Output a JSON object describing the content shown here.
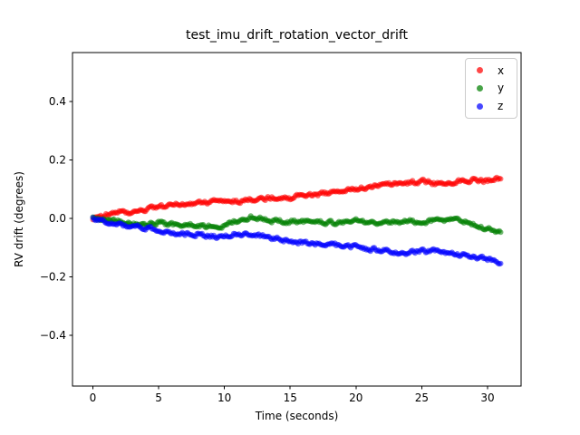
{
  "title": "test_imu_drift_rotation_vector_drift",
  "axes": {
    "xlabel": "Time (seconds)",
    "ylabel": "RV drift (degrees)",
    "xlim": [
      -1.55,
      32.55
    ],
    "ylim": [
      -0.574,
      0.567
    ],
    "xticks": [
      0,
      5,
      10,
      15,
      20,
      25,
      30
    ],
    "xtick_labels": [
      "0",
      "5",
      "10",
      "15",
      "20",
      "25",
      "30"
    ],
    "yticks": [
      -0.4,
      -0.2,
      0.0,
      0.2,
      0.4
    ],
    "ytick_labels": [
      "−0.4",
      "−0.2",
      "0.0",
      "0.2",
      "0.4"
    ],
    "grid": false,
    "background": "#ffffff",
    "spine_color": "#000000"
  },
  "legend": {
    "position": "upper right",
    "entries": [
      {
        "label": "x",
        "color": "#ff0000"
      },
      {
        "label": "y",
        "color": "#008000"
      },
      {
        "label": "z",
        "color": "#0000ff"
      }
    ]
  },
  "chart_data": {
    "type": "scatter",
    "title": "test_imu_drift_rotation_vector_drift",
    "xlabel": "Time (seconds)",
    "ylabel": "RV drift (degrees)",
    "xlim": [
      -1.55,
      32.55
    ],
    "ylim": [
      -0.574,
      0.567
    ],
    "x_seconds": [
      0,
      1,
      2,
      3,
      4,
      5,
      6,
      7,
      8,
      9,
      10,
      11,
      12,
      13,
      14,
      15,
      16,
      17,
      18,
      19,
      20,
      21,
      22,
      23,
      24,
      25,
      26,
      27,
      28,
      29,
      30,
      31
    ],
    "series": [
      {
        "name": "x",
        "color": "#ff0000",
        "values": [
          0.0,
          0.012,
          0.022,
          0.016,
          0.03,
          0.038,
          0.044,
          0.049,
          0.053,
          0.057,
          0.063,
          0.057,
          0.065,
          0.067,
          0.073,
          0.069,
          0.082,
          0.079,
          0.088,
          0.092,
          0.101,
          0.106,
          0.114,
          0.118,
          0.122,
          0.126,
          0.119,
          0.123,
          0.129,
          0.132,
          0.128,
          0.136
        ]
      },
      {
        "name": "y",
        "color": "#008000",
        "values": [
          0.0,
          -0.005,
          -0.01,
          -0.018,
          -0.021,
          -0.016,
          -0.022,
          -0.02,
          -0.025,
          -0.027,
          -0.023,
          -0.008,
          0.003,
          -0.004,
          -0.009,
          -0.012,
          -0.01,
          -0.013,
          -0.015,
          -0.017,
          -0.005,
          -0.02,
          -0.015,
          -0.012,
          -0.01,
          -0.015,
          -0.007,
          -0.004,
          -0.006,
          -0.02,
          -0.036,
          -0.05
        ]
      },
      {
        "name": "z",
        "color": "#0000ff",
        "values": [
          0.0,
          -0.013,
          -0.019,
          -0.029,
          -0.031,
          -0.039,
          -0.049,
          -0.053,
          -0.054,
          -0.061,
          -0.063,
          -0.053,
          -0.059,
          -0.063,
          -0.069,
          -0.079,
          -0.083,
          -0.087,
          -0.089,
          -0.094,
          -0.099,
          -0.105,
          -0.109,
          -0.116,
          -0.119,
          -0.113,
          -0.113,
          -0.119,
          -0.126,
          -0.131,
          -0.139,
          -0.153
        ]
      }
    ]
  }
}
